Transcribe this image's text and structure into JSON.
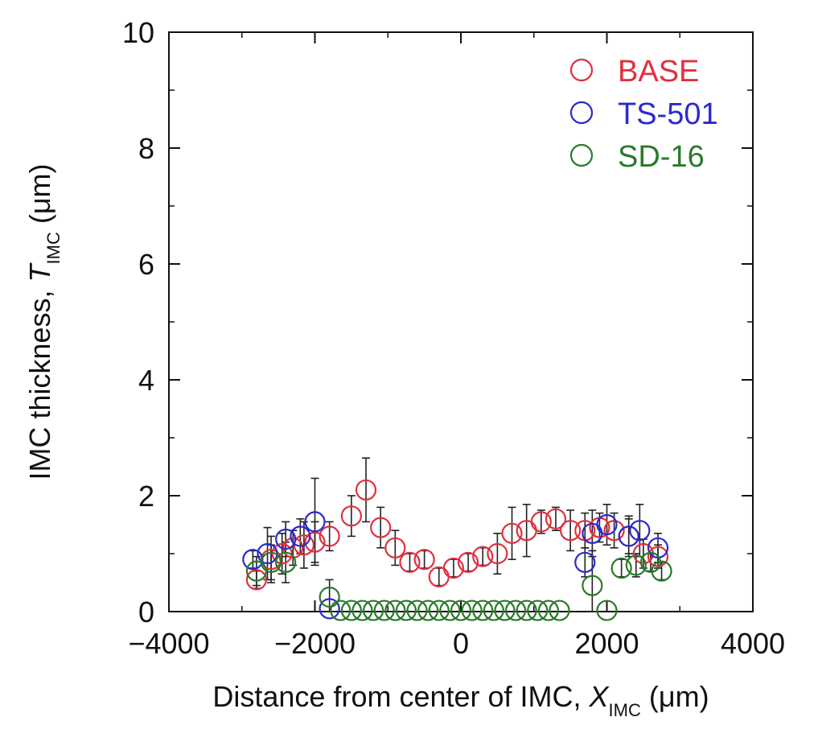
{
  "chart_data": {
    "type": "scatter",
    "title": "",
    "xlabel": {
      "prefix": "Distance from center of IMC, ",
      "symbol": "X",
      "subscript": "IMC",
      "unit": " (μm)"
    },
    "ylabel": {
      "prefix": "IMC thickness, ",
      "symbol": "T",
      "subscript": "IMC",
      "unit": " (μm)"
    },
    "xlim": [
      -4000,
      4000
    ],
    "ylim": [
      0,
      10
    ],
    "xticks": [
      -4000,
      -2000,
      0,
      2000,
      4000
    ],
    "xtick_labels": [
      "−4000",
      "−2000",
      "0",
      "2000",
      "4000"
    ],
    "yticks": [
      0,
      2,
      4,
      6,
      8,
      10
    ],
    "ytick_labels": [
      "0",
      "2",
      "4",
      "6",
      "8",
      "10"
    ],
    "legend_position": "top-right",
    "series": [
      {
        "name": "BASE",
        "color": "#e03040",
        "x": [
          -2800,
          -2600,
          -2450,
          -2300,
          -2150,
          -2000,
          -1800,
          -1500,
          -1300,
          -1100,
          -900,
          -700,
          -500,
          -300,
          -100,
          100,
          300,
          500,
          700,
          900,
          1100,
          1300,
          1500,
          1700,
          1900,
          2100,
          2300,
          2500,
          2700
        ],
        "y": [
          0.55,
          0.9,
          1.0,
          1.1,
          1.15,
          1.2,
          1.3,
          1.65,
          2.1,
          1.45,
          1.1,
          0.85,
          0.9,
          0.6,
          0.75,
          0.85,
          0.95,
          1.0,
          1.35,
          1.4,
          1.55,
          1.6,
          1.4,
          1.4,
          1.45,
          1.4,
          1.3,
          1.0,
          0.95
        ],
        "err": [
          0.15,
          0.4,
          0.35,
          0.3,
          0.4,
          0.35,
          0.25,
          0.35,
          0.55,
          0.35,
          0.3,
          0.15,
          0.15,
          0.15,
          0.15,
          0.15,
          0.15,
          0.35,
          0.45,
          0.45,
          0.2,
          0.2,
          0.35,
          0.3,
          0.25,
          0.3,
          0.35,
          0.25,
          0.2
        ]
      },
      {
        "name": "TS-501",
        "color": "#2a2ad0",
        "x": [
          -2850,
          -2650,
          -2400,
          -2200,
          -2000,
          -1800,
          1700,
          1800,
          2000,
          2300,
          2450,
          2700
        ],
        "y": [
          0.9,
          1.0,
          1.25,
          1.3,
          1.55,
          0.05,
          0.85,
          1.35,
          1.5,
          1.3,
          1.4,
          1.1
        ],
        "err": [
          0.15,
          0.45,
          0.3,
          0.3,
          0.75,
          0.0,
          0.25,
          0.4,
          0.35,
          0.3,
          0.45,
          0.25
        ]
      },
      {
        "name": "SD-16",
        "color": "#2a7a2a",
        "x": [
          -2800,
          -2600,
          -2400,
          -1800,
          -1650,
          -1500,
          -1350,
          -1200,
          -1050,
          -900,
          -750,
          -600,
          -450,
          -300,
          -150,
          0,
          150,
          300,
          450,
          600,
          750,
          900,
          1050,
          1200,
          1350,
          1800,
          2000,
          2200,
          2400,
          2600,
          2750
        ],
        "y": [
          0.7,
          0.85,
          0.85,
          0.25,
          0.02,
          0.02,
          0.02,
          0.02,
          0.02,
          0.02,
          0.02,
          0.02,
          0.02,
          0.02,
          0.02,
          0.02,
          0.02,
          0.02,
          0.02,
          0.02,
          0.02,
          0.02,
          0.02,
          0.02,
          0.02,
          0.45,
          0.02,
          0.75,
          0.8,
          0.85,
          0.7
        ],
        "err": [
          0.25,
          0.3,
          0.35,
          0.3,
          0,
          0,
          0,
          0,
          0,
          0,
          0,
          0,
          0,
          0,
          0,
          0,
          0,
          0,
          0,
          0,
          0,
          0,
          0,
          0,
          0,
          0.6,
          0,
          0.15,
          0.2,
          0.15,
          0.15
        ]
      }
    ]
  }
}
